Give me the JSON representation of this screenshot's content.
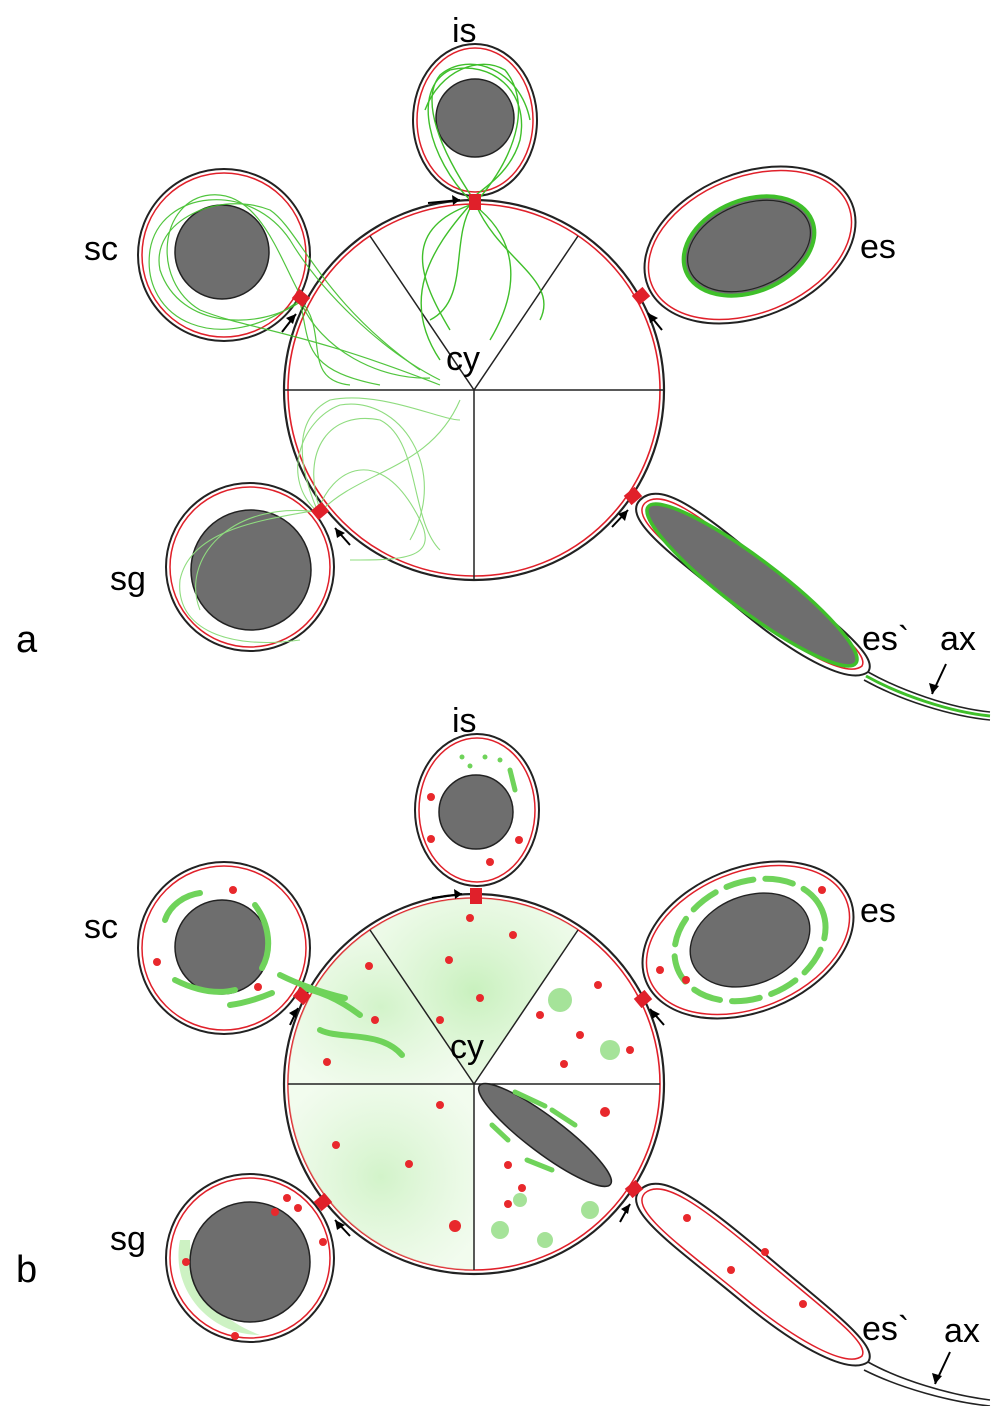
{
  "panels": [
    {
      "id": "a",
      "letter": "a",
      "labels": {
        "is": "is",
        "sc": "sc",
        "es": "es",
        "cy": "cy",
        "sg": "sg",
        "es_prime": "es`",
        "ax": "ax"
      }
    },
    {
      "id": "b",
      "letter": "b",
      "labels": {
        "is": "is",
        "sc": "sc",
        "es": "es",
        "cy": "cy",
        "sg": "sg",
        "es_prime": "es`",
        "ax": "ax"
      }
    }
  ],
  "colors": {
    "membrane_red": "#e0202a",
    "outline": "#222222",
    "nucleus": "#6e6e6e",
    "fiber_green": "#3fbf2a",
    "fiber_light": "#8fdc7f",
    "dot_red": "#e8282c",
    "bar_green": "#6fd35a"
  }
}
